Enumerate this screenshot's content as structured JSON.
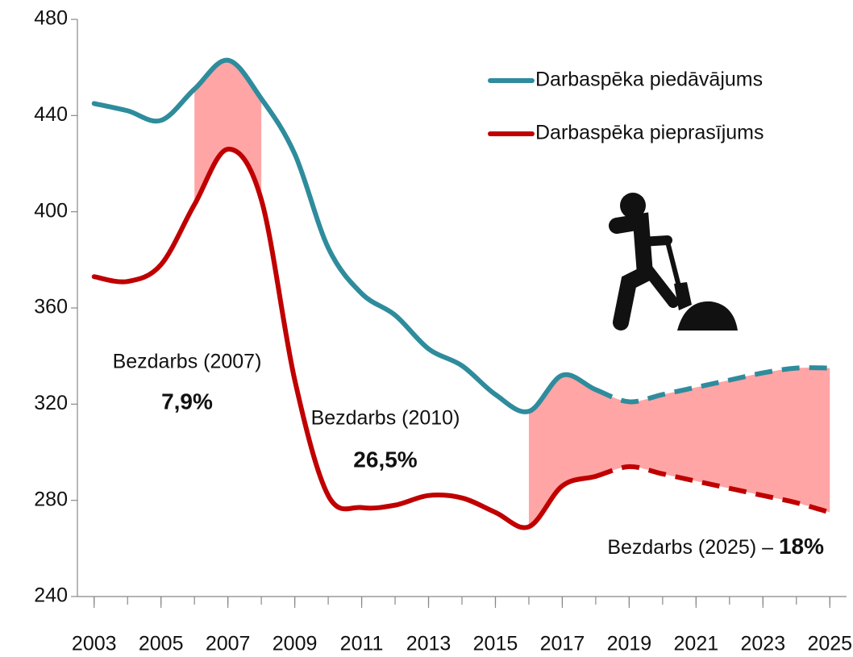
{
  "chart_data": {
    "type": "line",
    "x": [
      2003,
      2004,
      2005,
      2006,
      2007,
      2008,
      2009,
      2010,
      2011,
      2012,
      2013,
      2014,
      2015,
      2016,
      2017,
      2018,
      2019,
      2020,
      2021,
      2022,
      2023,
      2024,
      2025
    ],
    "series": [
      {
        "name": "Darbaspēka piedāvājums",
        "color": "#2e8c9c",
        "values": [
          445,
          442,
          438,
          451,
          463,
          447,
          424,
          385,
          366,
          357,
          343,
          336,
          324,
          317,
          332,
          326,
          321,
          324,
          327,
          330,
          333,
          335,
          335
        ]
      },
      {
        "name": "Darbaspēka pieprasījums",
        "color": "#c00000",
        "values": [
          373,
          371,
          378,
          403,
          426,
          405,
          330,
          282,
          277,
          278,
          282,
          281,
          275,
          269,
          286,
          290,
          294,
          291,
          288,
          285,
          282,
          279,
          275
        ]
      }
    ],
    "forecast_from": 2018,
    "shaded_ranges": [
      [
        2006,
        2008
      ],
      [
        2016,
        2025
      ]
    ],
    "shade_color": "#ffa5a5",
    "xlim": [
      2002.5,
      2025.5
    ],
    "xticks": [
      2003,
      2005,
      2007,
      2009,
      2011,
      2013,
      2015,
      2017,
      2019,
      2021,
      2023,
      2025
    ],
    "ylim": [
      240,
      480
    ],
    "yticks": [
      240,
      280,
      320,
      360,
      400,
      440,
      480
    ],
    "legend": "upper right",
    "annotations": [
      {
        "text": "Bezdarbs (2007)",
        "value": "7,9%"
      },
      {
        "text": "Bezdarbs (2010)",
        "value": "26,5%"
      },
      {
        "text": "Bezdarbs (2025) – ",
        "value": "18%"
      }
    ]
  }
}
